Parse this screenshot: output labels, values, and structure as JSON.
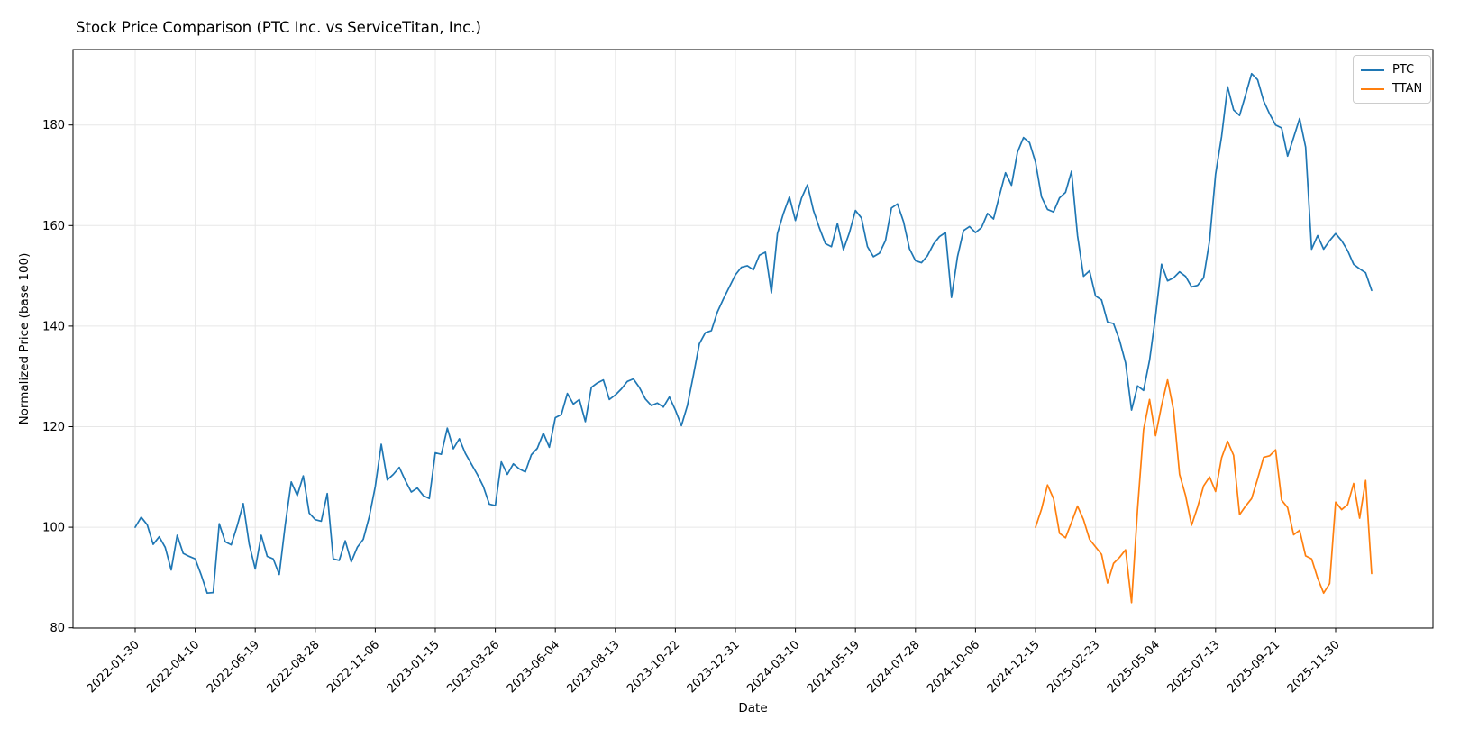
{
  "figure": {
    "title": "Stock Price Comparison (PTC Inc. vs ServiceTitan, Inc.)",
    "xlabel": "Date",
    "ylabel": "Normalized Price (base 100)"
  },
  "legend": {
    "entries": [
      {
        "label": "PTC",
        "color": "#1f77b4"
      },
      {
        "label": "TTAN",
        "color": "#ff7f0e"
      }
    ]
  },
  "chart_data": {
    "type": "line",
    "title": "Stock Price Comparison (PTC Inc. vs ServiceTitan, Inc.)",
    "xlabel": "Date",
    "ylabel": "Normalized Price (base 100)",
    "x_start_date": "2022-01-30",
    "x_step_days": 7,
    "x_tick_labels": [
      "2022-01-30",
      "2022-04-10",
      "2022-06-19",
      "2022-08-28",
      "2022-11-06",
      "2023-01-15",
      "2023-03-26",
      "2023-06-04",
      "2023-08-13",
      "2023-10-22",
      "2023-12-31",
      "2024-03-10",
      "2024-05-19",
      "2024-07-28",
      "2024-10-06",
      "2024-12-15",
      "2025-02-23",
      "2025-05-04",
      "2025-07-13",
      "2025-09-21",
      "2025-11-30"
    ],
    "x_tick_interval_weeks": 10,
    "y_ticks": [
      80,
      100,
      120,
      140,
      160,
      180
    ],
    "ylim": [
      80,
      195
    ],
    "grid": true,
    "legend_position": "upper right",
    "series": [
      {
        "name": "PTC",
        "color": "#1f77b4",
        "start_week": 0,
        "values": [
          100.0,
          102.0,
          100.5,
          96.6,
          98.1,
          96.0,
          91.5,
          98.4,
          94.8,
          94.2,
          93.7,
          90.5,
          86.9,
          87.0,
          100.7,
          97.1,
          96.5,
          100.3,
          104.7,
          96.6,
          91.7,
          98.4,
          94.2,
          93.7,
          90.6,
          100.5,
          109.0,
          106.3,
          110.2,
          102.8,
          101.5,
          101.2,
          106.7,
          93.7,
          93.4,
          97.3,
          93.1,
          96.0,
          97.6,
          102.1,
          108.1,
          116.5,
          109.4,
          110.5,
          111.9,
          109.3,
          107.0,
          107.8,
          106.3,
          105.7,
          114.8,
          114.5,
          119.7,
          115.6,
          117.6,
          114.7,
          112.6,
          110.5,
          108.1,
          104.6,
          104.3,
          113.0,
          110.5,
          112.6,
          111.6,
          111.0,
          114.4,
          115.7,
          118.7,
          115.9,
          121.8,
          122.4,
          126.6,
          124.5,
          125.4,
          121.0,
          127.8,
          128.7,
          129.3,
          125.4,
          126.3,
          127.5,
          129.0,
          129.5,
          127.8,
          125.5,
          124.2,
          124.7,
          123.9,
          125.9,
          123.3,
          120.2,
          124.2,
          130.2,
          136.5,
          138.7,
          139.1,
          142.8,
          145.4,
          147.8,
          150.2,
          151.7,
          152.0,
          151.2,
          154.1,
          154.7,
          146.6,
          158.4,
          162.4,
          165.7,
          161.0,
          165.4,
          168.1,
          163.0,
          159.5,
          156.4,
          155.8,
          160.4,
          155.2,
          158.6,
          163.0,
          161.5,
          155.8,
          153.8,
          154.5,
          157.0,
          163.5,
          164.3,
          160.8,
          155.4,
          153.0,
          152.6,
          154.0,
          156.3,
          157.8,
          158.6,
          145.7,
          153.8,
          159.0,
          159.8,
          158.6,
          159.6,
          162.4,
          161.3,
          166.0,
          170.5,
          168.0,
          174.6,
          177.5,
          176.5,
          172.6,
          165.7,
          163.2,
          162.7,
          165.5,
          166.6,
          170.8,
          158.0,
          149.9,
          151.0,
          146.0,
          145.2,
          140.8,
          140.5,
          137.2,
          132.7,
          123.3,
          128.1,
          127.2,
          133.2,
          142.0,
          152.3,
          149.0,
          149.6,
          150.8,
          149.9,
          147.8,
          148.1,
          149.6,
          157.0,
          170.2,
          177.7,
          187.6,
          183.0,
          181.9,
          186.0,
          190.2,
          189.0,
          184.8,
          182.2,
          180.0,
          179.4,
          173.8,
          177.5,
          181.3,
          175.6,
          155.3,
          158.0,
          155.3,
          157.0,
          158.4,
          157.0,
          155.0,
          152.3,
          151.4,
          150.6,
          147.1
        ]
      },
      {
        "name": "TTAN",
        "color": "#ff7f0e",
        "start_week": 150,
        "values": [
          100.0,
          103.6,
          108.4,
          105.7,
          98.8,
          97.9,
          101.0,
          104.2,
          101.5,
          97.6,
          96.1,
          94.6,
          88.9,
          92.8,
          94.0,
          95.5,
          85.0,
          103.6,
          119.4,
          125.4,
          118.2,
          124.2,
          129.3,
          123.3,
          110.5,
          106.3,
          100.4,
          104.0,
          108.2,
          110.0,
          107.1,
          113.8,
          117.1,
          114.3,
          102.5,
          104.2,
          105.7,
          109.6,
          113.9,
          114.2,
          115.4,
          105.4,
          103.9,
          98.5,
          99.4,
          94.3,
          93.7,
          89.9,
          86.9,
          88.8,
          105.0,
          103.5,
          104.5,
          108.7,
          101.8,
          109.3,
          90.8
        ]
      }
    ],
    "style": {
      "grid_color": "#e7e7e7",
      "spine_color": "#000000",
      "background": "#ffffff",
      "line_width": 1.7
    }
  }
}
